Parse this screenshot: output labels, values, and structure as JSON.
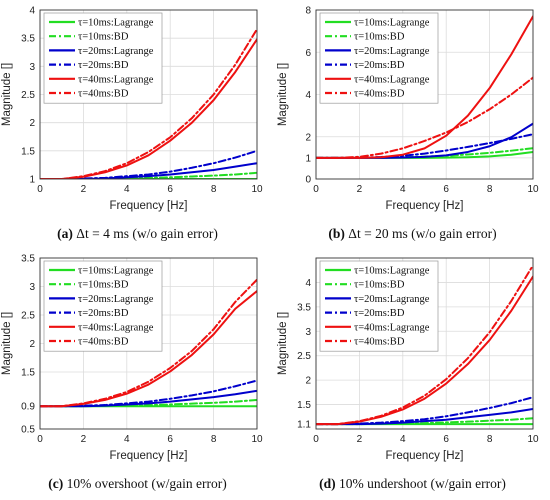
{
  "chart_data": [
    {
      "type": "line",
      "caption_tag": "(a)",
      "caption_text": "Δt = 4 ms (w/o gain error)",
      "xlabel": "Frequency [Hz]",
      "ylabel": "Magnitude []",
      "xlim": [
        0,
        10
      ],
      "ylim": [
        1,
        4
      ],
      "xticks": [
        "0",
        "2",
        "4",
        "6",
        "8",
        "10"
      ],
      "yticks": [
        "1",
        "1.5",
        "2",
        "2.5",
        "3",
        "3.5",
        "4"
      ],
      "ytick_values": [
        1,
        1.5,
        2,
        2.5,
        3,
        3.5,
        4
      ],
      "legend_position": "top-left",
      "grid": true,
      "series": [
        {
          "name": "τ=10ms:Lagrange",
          "color": "#22dd22",
          "dash": "solid",
          "x": [
            0,
            1,
            2,
            3,
            4,
            5,
            6,
            7,
            8,
            9,
            10
          ],
          "values": [
            1,
            1,
            1,
            1,
            1,
            1,
            1,
            1,
            1,
            1,
            1
          ]
        },
        {
          "name": "τ=10ms:BD",
          "color": "#22dd22",
          "dash": "dashdot",
          "x": [
            0,
            1,
            2,
            3,
            4,
            5,
            6,
            7,
            8,
            9,
            10
          ],
          "values": [
            1,
            1,
            1,
            1.005,
            1.01,
            1.02,
            1.03,
            1.045,
            1.06,
            1.08,
            1.11
          ]
        },
        {
          "name": "τ=20ms:Lagrange",
          "color": "#0000cc",
          "dash": "solid",
          "x": [
            0,
            1,
            2,
            3,
            4,
            5,
            6,
            7,
            8,
            9,
            10
          ],
          "values": [
            1,
            1,
            1,
            1.01,
            1.03,
            1.05,
            1.08,
            1.12,
            1.16,
            1.22,
            1.28
          ]
        },
        {
          "name": "τ=20ms:BD",
          "color": "#0000cc",
          "dash": "dashdot",
          "x": [
            0,
            1,
            2,
            3,
            4,
            5,
            6,
            7,
            8,
            9,
            10
          ],
          "values": [
            1,
            1,
            1.01,
            1.02,
            1.05,
            1.08,
            1.13,
            1.2,
            1.28,
            1.38,
            1.5
          ]
        },
        {
          "name": "τ=40ms:Lagrange",
          "color": "#ee1111",
          "dash": "solid",
          "x": [
            0,
            1,
            2,
            3,
            4,
            5,
            6,
            7,
            8,
            9,
            10
          ],
          "values": [
            1,
            1,
            1.04,
            1.12,
            1.24,
            1.42,
            1.68,
            2,
            2.4,
            2.9,
            3.48
          ]
        },
        {
          "name": "τ=40ms:BD",
          "color": "#ee1111",
          "dash": "dashdot",
          "x": [
            0,
            1,
            2,
            3,
            4,
            5,
            6,
            7,
            8,
            9,
            10
          ],
          "values": [
            1,
            1,
            1.05,
            1.14,
            1.28,
            1.48,
            1.74,
            2.08,
            2.5,
            3.03,
            3.66
          ]
        }
      ]
    },
    {
      "type": "line",
      "caption_tag": "(b)",
      "caption_text": "Δt = 20 ms (w/o gain error)",
      "xlabel": "Frequency [Hz]",
      "ylabel": "Magnitude []",
      "xlim": [
        0,
        10
      ],
      "ylim": [
        0,
        8
      ],
      "xticks": [
        "0",
        "2",
        "4",
        "6",
        "8",
        "10"
      ],
      "yticks": [
        "0",
        "1",
        "2",
        "4",
        "6",
        "8"
      ],
      "ytick_values": [
        0,
        1,
        2,
        4,
        6,
        8
      ],
      "legend_position": "top-left",
      "grid": true,
      "series": [
        {
          "name": "τ=10ms:Lagrange",
          "color": "#22dd22",
          "dash": "solid",
          "x": [
            0,
            1,
            2,
            3,
            4,
            5,
            6,
            7,
            8,
            9,
            10
          ],
          "values": [
            1,
            1,
            1,
            1,
            1,
            1,
            1.01,
            1.03,
            1.07,
            1.15,
            1.28
          ]
        },
        {
          "name": "τ=10ms:BD",
          "color": "#22dd22",
          "dash": "dashdot",
          "x": [
            0,
            1,
            2,
            3,
            4,
            5,
            6,
            7,
            8,
            9,
            10
          ],
          "values": [
            1,
            1,
            1,
            1.01,
            1.03,
            1.06,
            1.1,
            1.16,
            1.24,
            1.34,
            1.46
          ]
        },
        {
          "name": "τ=20ms:Lagrange",
          "color": "#0000cc",
          "dash": "solid",
          "x": [
            0,
            1,
            2,
            3,
            4,
            5,
            6,
            7,
            8,
            9,
            10
          ],
          "values": [
            1,
            1,
            1,
            1,
            1.02,
            1.05,
            1.12,
            1.28,
            1.55,
            1.98,
            2.62
          ]
        },
        {
          "name": "τ=20ms:BD",
          "color": "#0000cc",
          "dash": "dashdot",
          "x": [
            0,
            1,
            2,
            3,
            4,
            5,
            6,
            7,
            8,
            9,
            10
          ],
          "values": [
            1,
            1,
            1.01,
            1.04,
            1.1,
            1.2,
            1.35,
            1.52,
            1.7,
            1.9,
            2.12
          ]
        },
        {
          "name": "τ=40ms:Lagrange",
          "color": "#ee1111",
          "dash": "solid",
          "x": [
            0,
            1,
            2,
            3,
            4,
            5,
            6,
            7,
            8,
            9,
            10
          ],
          "values": [
            1,
            1,
            1,
            1.03,
            1.15,
            1.45,
            2.05,
            3,
            4.3,
            5.9,
            7.7
          ]
        },
        {
          "name": "τ=40ms:BD",
          "color": "#ee1111",
          "dash": "dashdot",
          "x": [
            0,
            1,
            2,
            3,
            4,
            5,
            6,
            7,
            8,
            9,
            10
          ],
          "values": [
            1,
            1,
            1.05,
            1.2,
            1.45,
            1.8,
            2.2,
            2.7,
            3.3,
            4,
            4.8
          ]
        }
      ]
    },
    {
      "type": "line",
      "caption_tag": "(c)",
      "caption_text": "10% overshoot (w/gain error)",
      "xlabel": "Frequency [Hz]",
      "ylabel": "Magnitude []",
      "xlim": [
        0,
        10
      ],
      "ylim": [
        0.5,
        3.5
      ],
      "xticks": [
        "0",
        "2",
        "4",
        "6",
        "8",
        "10"
      ],
      "yticks": [
        "0.5",
        "0.9",
        "1.5",
        "2",
        "2.5",
        "3",
        "3.5"
      ],
      "ytick_values": [
        0.5,
        0.9,
        1.5,
        2,
        2.5,
        3,
        3.5
      ],
      "legend_position": "top-left",
      "grid": true,
      "series": [
        {
          "name": "τ=10ms:Lagrange",
          "color": "#22dd22",
          "dash": "solid",
          "x": [
            0,
            1,
            2,
            3,
            4,
            5,
            6,
            7,
            8,
            9,
            10
          ],
          "values": [
            0.9,
            0.9,
            0.9,
            0.9,
            0.9,
            0.9,
            0.9,
            0.9,
            0.9,
            0.9,
            0.9
          ]
        },
        {
          "name": "τ=10ms:BD",
          "color": "#22dd22",
          "dash": "dashdot",
          "x": [
            0,
            1,
            2,
            3,
            4,
            5,
            6,
            7,
            8,
            9,
            10
          ],
          "values": [
            0.9,
            0.9,
            0.9,
            0.905,
            0.91,
            0.92,
            0.93,
            0.945,
            0.96,
            0.98,
            1.01
          ]
        },
        {
          "name": "τ=20ms:Lagrange",
          "color": "#0000cc",
          "dash": "solid",
          "x": [
            0,
            1,
            2,
            3,
            4,
            5,
            6,
            7,
            8,
            9,
            10
          ],
          "values": [
            0.9,
            0.9,
            0.9,
            0.91,
            0.93,
            0.95,
            0.98,
            1.02,
            1.06,
            1.11,
            1.17
          ]
        },
        {
          "name": "τ=20ms:BD",
          "color": "#0000cc",
          "dash": "dashdot",
          "x": [
            0,
            1,
            2,
            3,
            4,
            5,
            6,
            7,
            8,
            9,
            10
          ],
          "values": [
            0.9,
            0.9,
            0.91,
            0.92,
            0.95,
            0.98,
            1.03,
            1.09,
            1.16,
            1.25,
            1.35
          ]
        },
        {
          "name": "τ=40ms:Lagrange",
          "color": "#ee1111",
          "dash": "solid",
          "x": [
            0,
            1,
            2,
            3,
            4,
            5,
            6,
            7,
            8,
            9,
            10
          ],
          "values": [
            0.9,
            0.9,
            0.94,
            1.01,
            1.12,
            1.28,
            1.51,
            1.8,
            2.16,
            2.61,
            2.92
          ]
        },
        {
          "name": "τ=40ms:BD",
          "color": "#ee1111",
          "dash": "dashdot",
          "x": [
            0,
            1,
            2,
            3,
            4,
            5,
            6,
            7,
            8,
            9,
            10
          ],
          "values": [
            0.9,
            0.9,
            0.95,
            1.03,
            1.15,
            1.33,
            1.57,
            1.87,
            2.25,
            2.73,
            3.12
          ]
        }
      ]
    },
    {
      "type": "line",
      "caption_tag": "(d)",
      "caption_text": "10% undershoot (w/gain error)",
      "xlabel": "Frequency [Hz]",
      "ylabel": "Magnitude []",
      "xlim": [
        0,
        10
      ],
      "ylim": [
        1,
        4.5
      ],
      "xticks": [
        "0",
        "2",
        "4",
        "6",
        "8",
        "10"
      ],
      "yticks": [
        "1.1",
        "1.5",
        "2",
        "2.5",
        "3",
        "3.5",
        "4"
      ],
      "ytick_values": [
        1.1,
        1.5,
        2,
        2.5,
        3,
        3.5,
        4
      ],
      "legend_position": "top-left",
      "grid": true,
      "series": [
        {
          "name": "τ=10ms:Lagrange",
          "color": "#22dd22",
          "dash": "solid",
          "x": [
            0,
            1,
            2,
            3,
            4,
            5,
            6,
            7,
            8,
            9,
            10
          ],
          "values": [
            1.1,
            1.1,
            1.1,
            1.1,
            1.1,
            1.1,
            1.1,
            1.1,
            1.1,
            1.1,
            1.1
          ]
        },
        {
          "name": "τ=10ms:BD",
          "color": "#22dd22",
          "dash": "dashdot",
          "x": [
            0,
            1,
            2,
            3,
            4,
            5,
            6,
            7,
            8,
            9,
            10
          ],
          "values": [
            1.1,
            1.1,
            1.1,
            1.105,
            1.11,
            1.12,
            1.135,
            1.15,
            1.17,
            1.19,
            1.22
          ]
        },
        {
          "name": "τ=20ms:Lagrange",
          "color": "#0000cc",
          "dash": "solid",
          "x": [
            0,
            1,
            2,
            3,
            4,
            5,
            6,
            7,
            8,
            9,
            10
          ],
          "values": [
            1.1,
            1.1,
            1.1,
            1.11,
            1.13,
            1.16,
            1.19,
            1.24,
            1.29,
            1.34,
            1.41
          ]
        },
        {
          "name": "τ=20ms:BD",
          "color": "#0000cc",
          "dash": "dashdot",
          "x": [
            0,
            1,
            2,
            3,
            4,
            5,
            6,
            7,
            8,
            9,
            10
          ],
          "values": [
            1.1,
            1.1,
            1.11,
            1.13,
            1.16,
            1.2,
            1.26,
            1.34,
            1.43,
            1.53,
            1.65
          ]
        },
        {
          "name": "τ=40ms:Lagrange",
          "color": "#ee1111",
          "dash": "solid",
          "x": [
            0,
            1,
            2,
            3,
            4,
            5,
            6,
            7,
            8,
            9,
            10
          ],
          "values": [
            1.1,
            1.1,
            1.15,
            1.25,
            1.4,
            1.62,
            1.93,
            2.33,
            2.82,
            3.42,
            4.12
          ]
        },
        {
          "name": "τ=40ms:BD",
          "color": "#ee1111",
          "dash": "dashdot",
          "x": [
            0,
            1,
            2,
            3,
            4,
            5,
            6,
            7,
            8,
            9,
            10
          ],
          "values": [
            1.1,
            1.1,
            1.16,
            1.27,
            1.44,
            1.68,
            2.02,
            2.45,
            2.98,
            3.62,
            4.35
          ]
        }
      ]
    }
  ]
}
